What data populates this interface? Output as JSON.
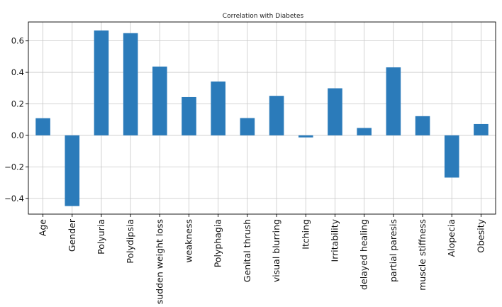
{
  "chart_data": {
    "type": "bar",
    "title": "Correlation with Diabetes",
    "xlabel": "",
    "ylabel": "",
    "categories": [
      "Age",
      "Gender",
      "Polyuria",
      "Polydipsia",
      "sudden weight loss",
      "weakness",
      "Polyphagia",
      "Genital thrush",
      "visual blurring",
      "Itching",
      "Irritability",
      "delayed healing",
      "partial paresis",
      "muscle stiffness",
      "Alopecia",
      "Obesity"
    ],
    "values": [
      0.109,
      -0.449,
      0.666,
      0.649,
      0.437,
      0.243,
      0.342,
      0.11,
      0.251,
      -0.013,
      0.299,
      0.047,
      0.432,
      0.122,
      -0.268,
      0.072
    ],
    "ylim": [
      -0.5,
      0.72
    ],
    "yticks": [
      -0.4,
      -0.2,
      0.0,
      0.2,
      0.4,
      0.6
    ],
    "ytick_labels": [
      "−0.4",
      "−0.2",
      "0.0",
      "0.2",
      "0.4",
      "0.6"
    ],
    "grid": true,
    "bar_color": "#2b7bba"
  }
}
